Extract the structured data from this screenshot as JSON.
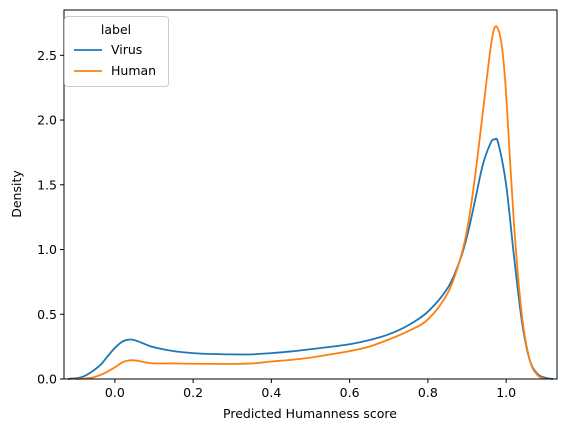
{
  "chart_data": {
    "type": "line",
    "xlabel": "Predicted Humanness score",
    "ylabel": "Density",
    "xlim": [
      -0.13,
      1.13
    ],
    "ylim": [
      0,
      2.85
    ],
    "xticks": [
      0.0,
      0.2,
      0.4,
      0.6,
      0.8,
      1.0
    ],
    "xtick_labels": [
      "0.0",
      "0.2",
      "0.4",
      "0.6",
      "0.8",
      "1.0"
    ],
    "yticks": [
      0.0,
      0.5,
      1.0,
      1.5,
      2.0,
      2.5
    ],
    "ytick_labels": [
      "0.0",
      "0.5",
      "1.0",
      "1.5",
      "2.0",
      "2.5"
    ],
    "grid": false,
    "legend": {
      "title": "label",
      "placement": "top-left"
    },
    "series": [
      {
        "name": "Virus",
        "color": "#1f77b4",
        "x": [
          -0.12,
          -0.08,
          -0.04,
          -0.02,
          0.0,
          0.02,
          0.04,
          0.06,
          0.08,
          0.1,
          0.15,
          0.2,
          0.25,
          0.3,
          0.35,
          0.4,
          0.45,
          0.5,
          0.55,
          0.6,
          0.65,
          0.7,
          0.75,
          0.8,
          0.85,
          0.88,
          0.9,
          0.92,
          0.94,
          0.96,
          0.97,
          0.98,
          1.0,
          1.02,
          1.04,
          1.06,
          1.08,
          1.1,
          1.12
        ],
        "y": [
          0.0,
          0.02,
          0.1,
          0.17,
          0.24,
          0.29,
          0.305,
          0.29,
          0.265,
          0.245,
          0.215,
          0.2,
          0.193,
          0.19,
          0.19,
          0.2,
          0.213,
          0.23,
          0.248,
          0.268,
          0.3,
          0.345,
          0.415,
          0.52,
          0.7,
          0.9,
          1.1,
          1.37,
          1.65,
          1.82,
          1.85,
          1.82,
          1.5,
          0.95,
          0.45,
          0.15,
          0.04,
          0.01,
          0.0
        ]
      },
      {
        "name": "Human",
        "color": "#ff7f0e",
        "x": [
          -0.1,
          -0.06,
          -0.03,
          0.0,
          0.02,
          0.04,
          0.06,
          0.08,
          0.1,
          0.15,
          0.2,
          0.25,
          0.3,
          0.35,
          0.4,
          0.45,
          0.5,
          0.55,
          0.6,
          0.65,
          0.7,
          0.75,
          0.8,
          0.85,
          0.88,
          0.9,
          0.92,
          0.94,
          0.96,
          0.97,
          0.98,
          0.99,
          1.0,
          1.02,
          1.04,
          1.06,
          1.08,
          1.1
        ],
        "y": [
          0.0,
          0.01,
          0.04,
          0.09,
          0.13,
          0.145,
          0.14,
          0.128,
          0.12,
          0.12,
          0.118,
          0.117,
          0.117,
          0.12,
          0.135,
          0.148,
          0.165,
          0.19,
          0.215,
          0.25,
          0.305,
          0.37,
          0.46,
          0.66,
          0.9,
          1.15,
          1.55,
          2.05,
          2.55,
          2.71,
          2.7,
          2.55,
          2.2,
          1.2,
          0.5,
          0.15,
          0.03,
          0.0
        ]
      }
    ]
  }
}
